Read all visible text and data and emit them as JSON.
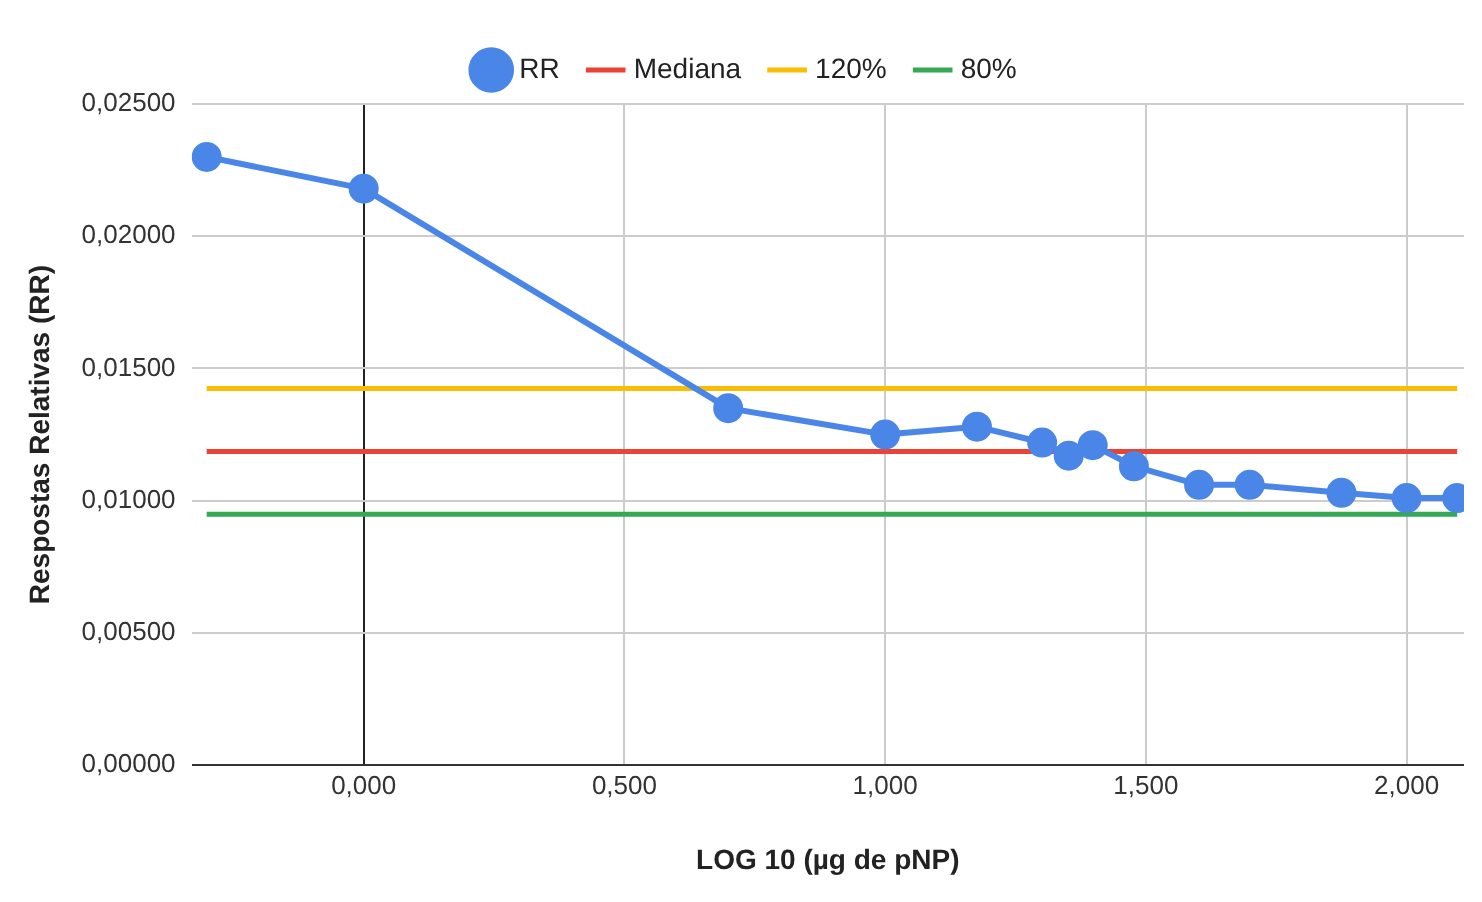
{
  "chart_data": {
    "type": "line",
    "xlabel": "LOG 10 (µg de pNP)",
    "ylabel": "Respostas Relativas (RR)",
    "x": [
      -0.301,
      0,
      0.699,
      1,
      1.176,
      1.301,
      1.352,
      1.398,
      1.477,
      1.602,
      1.699,
      1.875,
      2,
      2.097
    ],
    "series": [
      {
        "name": "RR",
        "color": "#4a86e8",
        "values": [
          0.023,
          0.0218,
          0.0135,
          0.0125,
          0.0128,
          0.0122,
          0.0117,
          0.0121,
          0.0113,
          0.0106,
          0.0106,
          0.0103,
          0.0101,
          0.0101
        ]
      },
      {
        "name": "Mediana",
        "color": "#ea4335",
        "marker": "none",
        "values": [
          0.01186,
          0.01186,
          0.01186,
          0.01186,
          0.01186,
          0.01186,
          0.01186,
          0.01186,
          0.01186,
          0.01186,
          0.01186,
          0.01186,
          0.01186,
          0.01186
        ]
      },
      {
        "name": "120%",
        "color": "#fbbc04",
        "marker": "none",
        "values": [
          0.01424,
          0.01424,
          0.01424,
          0.01424,
          0.01424,
          0.01424,
          0.01424,
          0.01424,
          0.01424,
          0.01424,
          0.01424,
          0.01424,
          0.01424,
          0.01424
        ]
      },
      {
        "name": "80%",
        "color": "#34a853",
        "marker": "none",
        "values": [
          0.00949,
          0.00949,
          0.00949,
          0.00949,
          0.00949,
          0.00949,
          0.00949,
          0.00949,
          0.00949,
          0.00949,
          0.00949,
          0.00949,
          0.00949,
          0.00949
        ]
      }
    ],
    "xlim": [
      -0.33,
      2.11
    ],
    "xticks": [
      {
        "value": 0,
        "label": "0,000"
      },
      {
        "value": 0.5,
        "label": "0,500"
      },
      {
        "value": 1,
        "label": "1,000"
      },
      {
        "value": 1.5,
        "label": "1,500"
      },
      {
        "value": 2,
        "label": "2,000"
      }
    ],
    "ylim": [
      0,
      0.025
    ],
    "yticks": [
      {
        "value": 0,
        "label": "0,00000"
      },
      {
        "value": 0.005,
        "label": "0,00500"
      },
      {
        "value": 0.01,
        "label": "0,01000"
      },
      {
        "value": 0.015,
        "label": "0,01500"
      },
      {
        "value": 0.02,
        "label": "0,02000"
      },
      {
        "value": 0.025,
        "label": "0,02500"
      }
    ],
    "grid": true,
    "legend": "top",
    "marker": "circle",
    "line_style": "solid"
  }
}
